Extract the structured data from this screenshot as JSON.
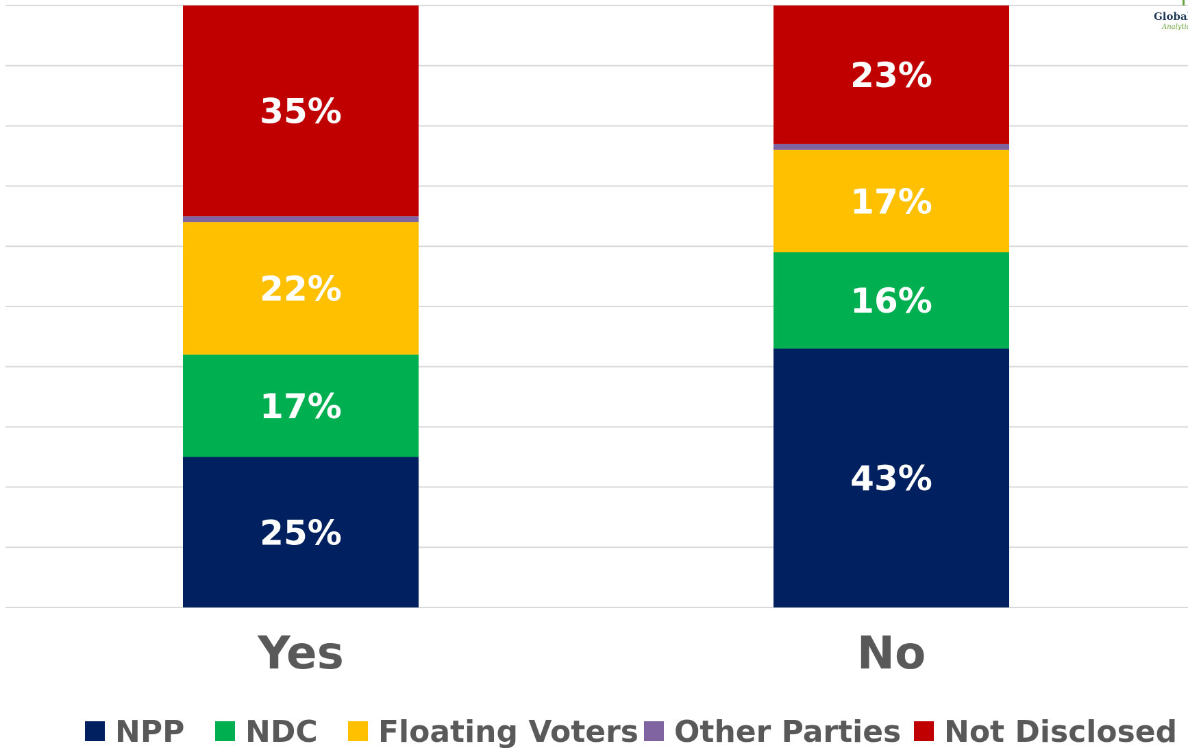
{
  "logo": {
    "text": "Global",
    "subtext": "Analytics"
  },
  "chart_data": {
    "type": "bar",
    "stacked": true,
    "categories": [
      "Yes",
      "No"
    ],
    "ylim": [
      0,
      100
    ],
    "grid": true,
    "legend_position": "bottom",
    "series": [
      {
        "name": "NPP",
        "color": "#002060",
        "values": [
          25,
          43
        ],
        "labels": [
          "25%",
          "43%"
        ]
      },
      {
        "name": "NDC",
        "color": "#00b050",
        "values": [
          17,
          16
        ],
        "labels": [
          "17%",
          "16%"
        ]
      },
      {
        "name": "Floating Voters",
        "color": "#ffc000",
        "values": [
          22,
          17
        ],
        "labels": [
          "22%",
          "17%"
        ]
      },
      {
        "name": "Other Parties",
        "color": "#8064a2",
        "values": [
          1,
          1
        ],
        "labels": [
          "",
          ""
        ]
      },
      {
        "name": "Not Disclosed",
        "color": "#c00000",
        "values": [
          35,
          23
        ],
        "labels": [
          "35%",
          "23%"
        ]
      }
    ]
  }
}
